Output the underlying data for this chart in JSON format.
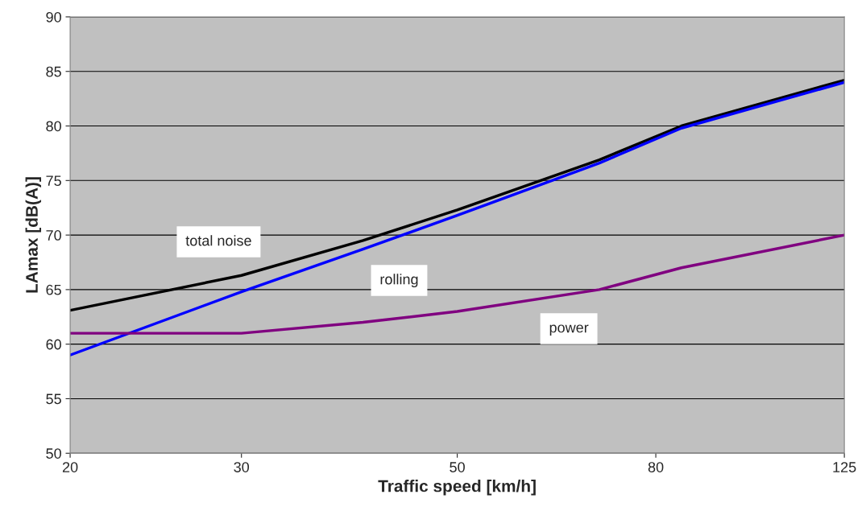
{
  "chart_data": {
    "type": "line",
    "xlabel": "Traffic speed [km/h]",
    "ylabel": "LAmax [dB(A)]",
    "x": [
      20,
      30,
      40,
      50,
      70,
      85,
      125
    ],
    "series": [
      {
        "name": "total noise",
        "color": "#000000",
        "values": [
          63.1,
          66.3,
          69.5,
          72.3,
          76.9,
          80.0,
          84.2
        ]
      },
      {
        "name": "rolling",
        "color": "#0000ff",
        "values": [
          59.0,
          64.8,
          68.7,
          71.8,
          76.6,
          79.8,
          84.0
        ]
      },
      {
        "name": "power",
        "color": "#800080",
        "values": [
          61.0,
          61.0,
          62.0,
          63.0,
          65.0,
          67.0,
          70.0
        ]
      }
    ],
    "log": "x",
    "xlim": [
      20,
      125
    ],
    "xticks": [
      20,
      30,
      50,
      80,
      125
    ],
    "ylim": [
      50,
      90
    ],
    "yticks": [
      50,
      55,
      60,
      65,
      70,
      75,
      80,
      85,
      90
    ],
    "grid": "y",
    "legend": false,
    "marker": "none",
    "line_style": "solid"
  }
}
